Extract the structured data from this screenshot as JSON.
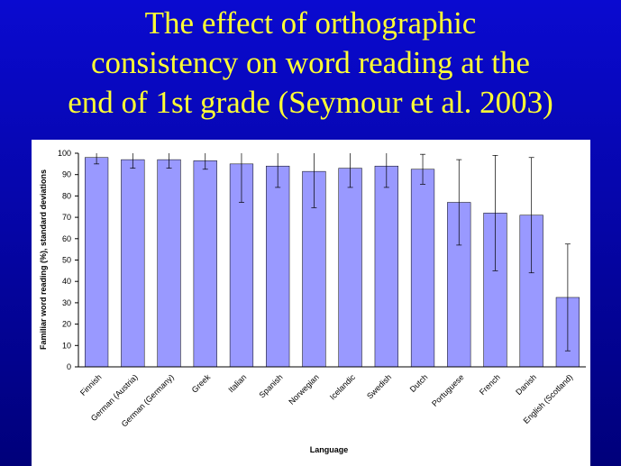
{
  "chart_data": {
    "type": "bar",
    "title": [
      "The effect of orthographic",
      "consistency on word reading at the",
      "end of 1st grade (Seymour et al. 2003)"
    ],
    "x_label": "Language",
    "y_label": "Familiar word reading (%), standard deviations",
    "categories": [
      "Finnish",
      "German (Austria)",
      "German (Germany)",
      "Greek",
      "Italian",
      "Spanish",
      "Norwegian",
      "Icelandic",
      "Swedish",
      "Dutch",
      "Portuguese",
      "French",
      "Danish",
      "English (Scotland)"
    ],
    "values": [
      98,
      97,
      97,
      96.5,
      95,
      94,
      91.5,
      93,
      94,
      92.5,
      77,
      72,
      71,
      32.5
    ],
    "errors": [
      3,
      4,
      4,
      4,
      18,
      10,
      17,
      9,
      10,
      7,
      20,
      27,
      27,
      25
    ],
    "color": "#9999ff",
    "ylim": [
      0,
      100
    ],
    "yticks": [
      0,
      10,
      20,
      30,
      40,
      50,
      60,
      70,
      80,
      90,
      100
    ],
    "grid": false
  }
}
